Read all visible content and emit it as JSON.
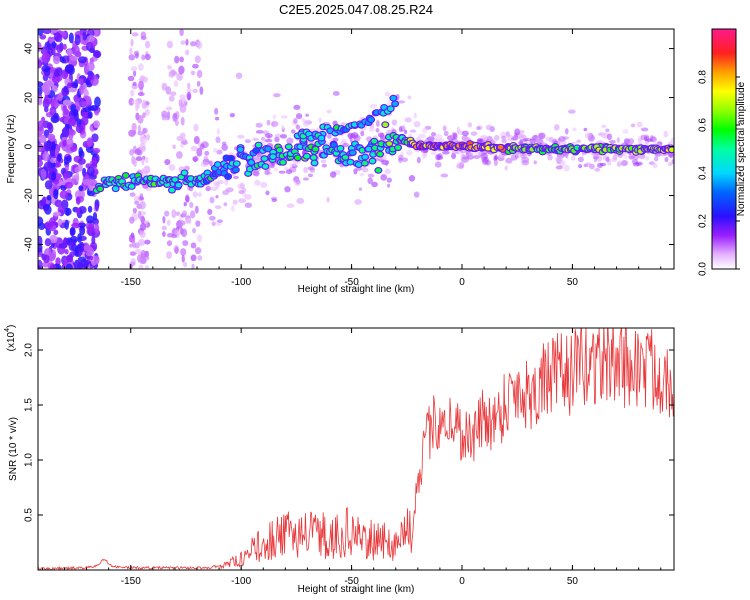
{
  "figure_title": "C2E5.2025.047.08.25.R24",
  "chart_data": [
    {
      "type": "heatmap",
      "xlabel": "Height of straight line (km)",
      "ylabel": "Frequency (Hz)",
      "xlim": [
        -192,
        96
      ],
      "ylim": [
        -50,
        48
      ],
      "xticks": [
        -150,
        -100,
        -50,
        0,
        50
      ],
      "xtick_labels": [
        "-150",
        "-100",
        "-50",
        "0",
        "50"
      ],
      "yticks": [
        -40,
        -20,
        0,
        20,
        40
      ],
      "ytick_labels": [
        "-40",
        "-20",
        "0",
        "20",
        "40"
      ],
      "colorbar": {
        "label": "Normalized spectral amplitude",
        "range": [
          0,
          1
        ],
        "ticks": [
          0.0,
          0.2,
          0.4,
          0.6,
          0.8
        ],
        "tick_labels": [
          "0.0",
          "0.2",
          "0.4",
          "0.6",
          "0.8"
        ]
      },
      "ridge": {
        "x": [
          -165,
          -155,
          -145,
          -135,
          -125,
          -118,
          -110,
          -100,
          -90,
          -80,
          -70,
          -60,
          -50,
          -40,
          -33,
          -28,
          -20,
          -10,
          0,
          10,
          30,
          50,
          70,
          95
        ],
        "y": [
          -15,
          -15,
          -14,
          -15,
          -14,
          -14,
          -10,
          -6,
          -4,
          -2,
          -1,
          -2,
          -3,
          -2,
          0,
          3,
          0,
          0,
          0,
          0,
          -1,
          -1,
          -1,
          -1
        ],
        "amplitude": [
          0.55,
          0.5,
          0.5,
          0.5,
          0.45,
          0.45,
          0.4,
          0.45,
          0.45,
          0.5,
          0.5,
          0.45,
          0.45,
          0.5,
          0.55,
          0.5,
          0.8,
          0.85,
          0.85,
          0.8,
          0.6,
          0.6,
          0.65,
          0.7
        ]
      },
      "upper_branch": {
        "x": [
          -75,
          -65,
          -55,
          -45,
          -40,
          -35,
          -30
        ],
        "y": [
          4,
          5,
          7,
          10,
          12,
          15,
          18
        ]
      }
    },
    {
      "type": "line",
      "xlabel": "Height of straight line (km)",
      "ylabel": "SNR (10 * v/v)",
      "yscale_label": "(x10",
      "yscale_exponent": "4",
      "xlim": [
        -192,
        96
      ],
      "ylim": [
        0,
        2.2
      ],
      "xticks": [
        -150,
        -100,
        -50,
        0,
        50
      ],
      "xtick_labels": [
        "-150",
        "-100",
        "-50",
        "0",
        "50"
      ],
      "yticks": [
        0.5,
        1.0,
        1.5,
        2.0
      ],
      "ytick_labels": [
        "0.5",
        "1.0",
        "1.5",
        "2.0"
      ],
      "series": [
        {
          "color": "#e8383b",
          "x": [
            -192,
            -170,
            -165,
            -162,
            -158,
            -150,
            -140,
            -130,
            -115,
            -110,
            -100,
            -95,
            -90,
            -85,
            -80,
            -75,
            -70,
            -65,
            -60,
            -55,
            -50,
            -45,
            -40,
            -35,
            -30,
            -25,
            -22,
            -20,
            -15,
            -10,
            -5,
            0,
            5,
            10,
            15,
            20,
            25,
            30,
            40,
            50,
            60,
            70,
            80,
            90,
            96
          ],
          "y": [
            0.01,
            0.02,
            0.04,
            0.1,
            0.03,
            0.02,
            0.02,
            0.02,
            0.02,
            0.04,
            0.12,
            0.22,
            0.3,
            0.35,
            0.38,
            0.45,
            0.4,
            0.42,
            0.35,
            0.4,
            0.45,
            0.3,
            0.35,
            0.32,
            0.3,
            0.45,
            0.5,
            0.85,
            1.25,
            1.4,
            1.35,
            1.25,
            1.2,
            1.4,
            1.35,
            1.55,
            1.65,
            1.6,
            1.75,
            1.8,
            1.9,
            1.9,
            1.85,
            1.8,
            1.75
          ]
        }
      ]
    }
  ]
}
